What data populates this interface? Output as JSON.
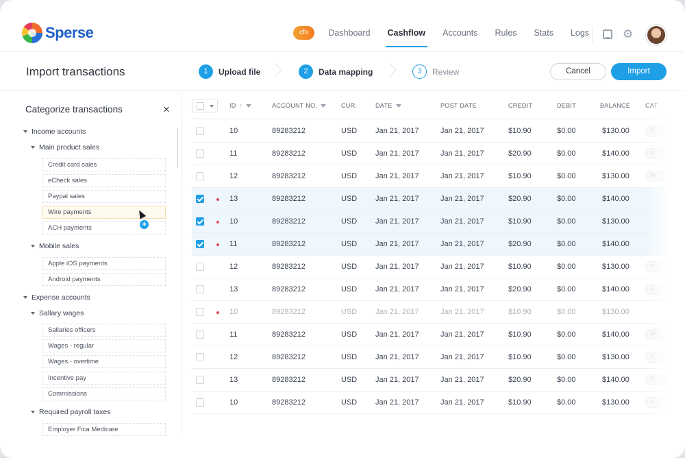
{
  "brand": {
    "name": "Sperse"
  },
  "nav": {
    "badge": "cfo",
    "items": [
      "Dashboard",
      "Cashflow",
      "Accounts",
      "Rules",
      "Stats",
      "Logs"
    ],
    "active": "Cashflow"
  },
  "page": {
    "title": "Import transactions",
    "steps": [
      {
        "num": "1",
        "label": "Upload file"
      },
      {
        "num": "2",
        "label": "Data mapping"
      },
      {
        "num": "3",
        "label": "Review"
      }
    ],
    "cancel_label": "Cancel",
    "import_label": "Import"
  },
  "sidebar": {
    "title": "Categorize transactions",
    "close": "×",
    "groups": {
      "income": "Income accounts",
      "main_product": "Main product sales",
      "main_product_items": [
        "Credit card sales",
        "eCheck sales",
        "Paypal sales",
        "Wire payments",
        "ACH payments"
      ],
      "mobile": "Mobile sales",
      "mobile_items": [
        "Apple iOS payments",
        "Android payments"
      ],
      "expense": "Expense accounts",
      "salary": "Sallary wages",
      "salary_items": [
        "Sallaries officers",
        "Wages - regular",
        "Wages - overtime",
        "Incentive pay",
        "Commissions"
      ],
      "payroll": "Required payroll taxes",
      "payroll_items": [
        "Employer Fica Medicare"
      ]
    },
    "add_symbol": "+"
  },
  "table": {
    "headers": {
      "id": "ID",
      "account": "ACCOUNT NO.",
      "cur": "CUR.",
      "date": "DATE",
      "post_date": "POST DATE",
      "credit": "CREDIT",
      "debit": "DEBIT",
      "balance": "BALANCE",
      "category": "CAT"
    },
    "rows": [
      {
        "id": "10",
        "account": "89283212",
        "cur": "USD",
        "date": "Jan 21, 2017",
        "post_date": "Jan 21, 2017",
        "credit": "$10.90",
        "debit": "$0.00",
        "balance": "$130.00",
        "cat": "C"
      },
      {
        "id": "11",
        "account": "89283212",
        "cur": "USD",
        "date": "Jan 21, 2017",
        "post_date": "Jan 21, 2017",
        "credit": "$20.90",
        "debit": "$0.00",
        "balance": "$140.00",
        "cat": "C"
      },
      {
        "id": "12",
        "account": "89283212",
        "cur": "USD",
        "date": "Jan 21, 2017",
        "post_date": "Jan 21, 2017",
        "credit": "$10.90",
        "debit": "$0.00",
        "balance": "$130.00",
        "cat": "W"
      },
      {
        "id": "13",
        "account": "89283212",
        "cur": "USD",
        "date": "Jan 21, 2017",
        "post_date": "Jan 21, 2017",
        "credit": "$20.90",
        "debit": "$0.00",
        "balance": "$140.00",
        "cat": ""
      },
      {
        "id": "10",
        "account": "89283212",
        "cur": "USD",
        "date": "Jan 21, 2017",
        "post_date": "Jan 21, 2017",
        "credit": "$10.90",
        "debit": "$0.00",
        "balance": "$130.00",
        "cat": ""
      },
      {
        "id": "11",
        "account": "89283212",
        "cur": "USD",
        "date": "Jan 21, 2017",
        "post_date": "Jan 21, 2017",
        "credit": "$20.90",
        "debit": "$0.00",
        "balance": "$140.00",
        "cat": ""
      },
      {
        "id": "12",
        "account": "89283212",
        "cur": "USD",
        "date": "Jan 21, 2017",
        "post_date": "Jan 21, 2017",
        "credit": "$10.90",
        "debit": "$0.00",
        "balance": "$130.00",
        "cat": "C"
      },
      {
        "id": "13",
        "account": "89283212",
        "cur": "USD",
        "date": "Jan 21, 2017",
        "post_date": "Jan 21, 2017",
        "credit": "$20.90",
        "debit": "$0.00",
        "balance": "$140.00",
        "cat": "C"
      },
      {
        "id": "10",
        "account": "89283212",
        "cur": "USD",
        "date": "Jan 21, 2017",
        "post_date": "Jan 21, 2017",
        "credit": "$10.90",
        "debit": "$0.00",
        "balance": "$130.00",
        "cat": ""
      },
      {
        "id": "11",
        "account": "89283212",
        "cur": "USD",
        "date": "Jan 21, 2017",
        "post_date": "Jan 21, 2017",
        "credit": "$10.90",
        "debit": "$0.00",
        "balance": "$140.00",
        "cat": "W"
      },
      {
        "id": "12",
        "account": "89283212",
        "cur": "USD",
        "date": "Jan 21, 2017",
        "post_date": "Jan 21, 2017",
        "credit": "$10.90",
        "debit": "$0.00",
        "balance": "$130.00",
        "cat": "C"
      },
      {
        "id": "13",
        "account": "89283212",
        "cur": "USD",
        "date": "Jan 21, 2017",
        "post_date": "Jan 21, 2017",
        "credit": "$20.90",
        "debit": "$0.00",
        "balance": "$140.00",
        "cat": "C"
      },
      {
        "id": "10",
        "account": "89283212",
        "cur": "USD",
        "date": "Jan 21, 2017",
        "post_date": "Jan 21, 2017",
        "credit": "$10.90",
        "debit": "$0.00",
        "balance": "$130.00",
        "cat": "C"
      }
    ],
    "selected_rows": [
      3,
      4,
      5
    ],
    "flagged_rows": [
      3,
      4,
      5,
      8
    ],
    "dimmed_rows": [
      8
    ]
  },
  "colors": {
    "accent": "#1f9fe6",
    "brand": "#1c5fc9",
    "flag": "#e8455d",
    "badge": "#f47a1f"
  },
  "icons": {
    "chat": "chat-icon",
    "settings": "gear-icon",
    "close": "close-icon",
    "sort": "sort-arrow-icon",
    "filter": "filter-icon"
  }
}
